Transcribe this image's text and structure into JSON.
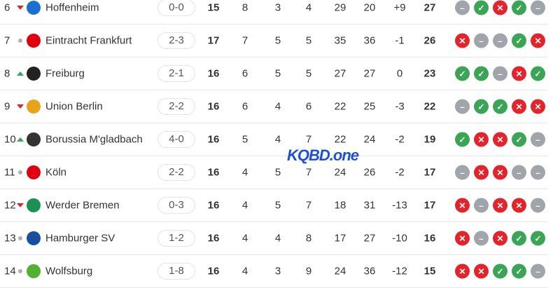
{
  "colors": {
    "win": "#3aa655",
    "loss": "#e3242b",
    "draw": "#a0a4ab",
    "up": "#3aa655",
    "down": "#e3242b"
  },
  "watermark": "KQBD.one",
  "rows": [
    {
      "pos": "6",
      "trend": "down",
      "team": "Hoffenheim",
      "logo": "#1a6fd1",
      "score": "0-0",
      "p": "15",
      "w": "8",
      "d": "3",
      "l": "4",
      "gf": "29",
      "ga": "20",
      "gd": "+9",
      "pts": "27",
      "form": [
        "D",
        "W",
        "L",
        "W",
        "D"
      ]
    },
    {
      "pos": "7",
      "trend": "same",
      "team": "Eintracht Frankfurt",
      "logo": "#e1000f",
      "score": "2-3",
      "p": "17",
      "w": "7",
      "d": "5",
      "l": "5",
      "gf": "35",
      "ga": "36",
      "gd": "-1",
      "pts": "26",
      "form": [
        "L",
        "D",
        "D",
        "W",
        "L"
      ]
    },
    {
      "pos": "8",
      "trend": "up",
      "team": "Freiburg",
      "logo": "#222222",
      "score": "2-1",
      "p": "16",
      "w": "6",
      "d": "5",
      "l": "5",
      "gf": "27",
      "ga": "27",
      "gd": "0",
      "pts": "23",
      "form": [
        "W",
        "W",
        "D",
        "L",
        "W"
      ]
    },
    {
      "pos": "9",
      "trend": "down",
      "team": "Union Berlin",
      "logo": "#e8a31a",
      "score": "2-2",
      "p": "16",
      "w": "6",
      "d": "4",
      "l": "6",
      "gf": "22",
      "ga": "25",
      "gd": "-3",
      "pts": "22",
      "form": [
        "D",
        "W",
        "W",
        "L",
        "L"
      ]
    },
    {
      "pos": "10",
      "trend": "up",
      "team": "Borussia M'gladbach",
      "logo": "#333333",
      "score": "4-0",
      "p": "16",
      "w": "5",
      "d": "4",
      "l": "7",
      "gf": "22",
      "ga": "24",
      "gd": "-2",
      "pts": "19",
      "form": [
        "W",
        "L",
        "L",
        "W",
        "D"
      ]
    },
    {
      "pos": "11",
      "trend": "same",
      "team": "Köln",
      "logo": "#e1000f",
      "score": "2-2",
      "p": "16",
      "w": "4",
      "d": "5",
      "l": "7",
      "gf": "24",
      "ga": "26",
      "gd": "-2",
      "pts": "17",
      "form": [
        "D",
        "L",
        "L",
        "D",
        "D"
      ]
    },
    {
      "pos": "12",
      "trend": "down",
      "team": "Werder Bremen",
      "logo": "#1d9053",
      "score": "0-3",
      "p": "16",
      "w": "4",
      "d": "5",
      "l": "7",
      "gf": "18",
      "ga": "31",
      "gd": "-13",
      "pts": "17",
      "form": [
        "L",
        "D",
        "L",
        "L",
        "D"
      ]
    },
    {
      "pos": "13",
      "trend": "same",
      "team": "Hamburger SV",
      "logo": "#1a4fa0",
      "score": "1-2",
      "p": "16",
      "w": "4",
      "d": "4",
      "l": "8",
      "gf": "17",
      "ga": "27",
      "gd": "-10",
      "pts": "16",
      "form": [
        "L",
        "D",
        "L",
        "W",
        "W"
      ]
    },
    {
      "pos": "14",
      "trend": "same",
      "team": "Wolfsburg",
      "logo": "#52b033",
      "score": "1-8",
      "p": "16",
      "w": "4",
      "d": "3",
      "l": "9",
      "gf": "24",
      "ga": "36",
      "gd": "-12",
      "pts": "15",
      "form": [
        "L",
        "L",
        "W",
        "W",
        "D"
      ]
    }
  ]
}
